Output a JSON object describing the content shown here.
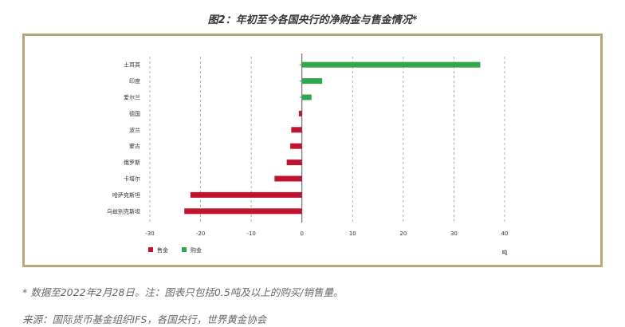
{
  "title": "图2：年初至今各国央行的净购金与售金情况*",
  "footnote": "* 数据至2022年2月28日。注：图表只包括0.5吨及以上的购买/销售量。",
  "source": "来源：国际货币基金组织IFS，各国央行，世界黄金协会",
  "colors": {
    "sell": "#c0132d",
    "buy": "#2ea84a",
    "frame": "#b5a77a"
  },
  "chart_data": {
    "type": "bar",
    "orientation": "horizontal",
    "categories": [
      "土耳其",
      "印度",
      "爱尔兰",
      "德国",
      "波兰",
      "蒙古",
      "俄罗斯",
      "卡塔尔",
      "哈萨克斯坦",
      "乌兹别克斯坦"
    ],
    "values": [
      35.2,
      4.0,
      1.9,
      -0.6,
      -2.1,
      -2.3,
      -3.0,
      -5.4,
      -22.0,
      -23.2
    ],
    "xlim": [
      -30,
      40
    ],
    "xticks": [
      "-30",
      "-20",
      "-10",
      "0",
      "10",
      "20",
      "30",
      "40"
    ],
    "xlabel": "吨",
    "grid": "vertical dashed",
    "legend": [
      {
        "label": "售金",
        "color": "#c0132d"
      },
      {
        "label": "购金",
        "color": "#2ea84a"
      }
    ],
    "legend_position": "bottom-left"
  }
}
